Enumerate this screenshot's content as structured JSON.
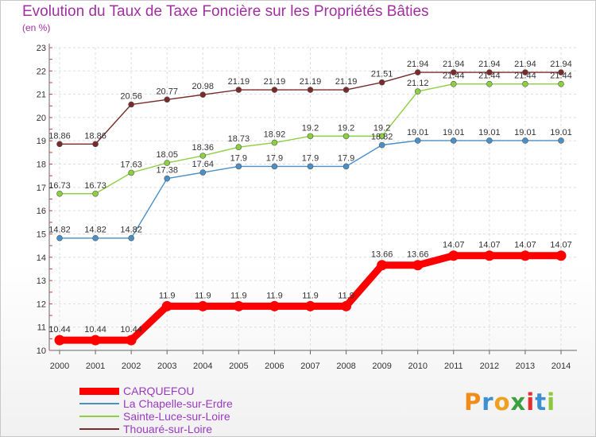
{
  "chart_data": {
    "type": "line",
    "title": "Evolution du Taux de Taxe Foncière sur les Propriétés Bâties",
    "unit_label": "(en %)",
    "x": [
      "2000",
      "2001",
      "2002",
      "2003",
      "2004",
      "2005",
      "2006",
      "2007",
      "2008",
      "2009",
      "2010",
      "2011",
      "2012",
      "2013",
      "2014"
    ],
    "ylim": [
      10,
      23
    ],
    "yticks": [
      "10",
      "11",
      "12",
      "13",
      "14",
      "15",
      "16",
      "17",
      "18",
      "19",
      "20",
      "21",
      "22",
      "23"
    ],
    "grid": true,
    "series": [
      {
        "name": "CARQUEFOU",
        "color": "#ff0000",
        "values": [
          10.44,
          10.44,
          10.44,
          11.9,
          11.9,
          11.9,
          11.9,
          11.9,
          11.9,
          13.66,
          13.66,
          14.07,
          14.07,
          14.07,
          14.07
        ],
        "labels": [
          "10.44",
          "10.44",
          "10.44",
          "11.9",
          "11.9",
          "11.9",
          "11.9",
          "11.9",
          "11.9",
          "13.66",
          "13.66",
          "14.07",
          "14.07",
          "14.07",
          "14.07"
        ]
      },
      {
        "name": "La Chapelle-sur-Erdre",
        "color": "#4a90c8",
        "values": [
          14.82,
          14.82,
          14.82,
          17.38,
          17.64,
          17.9,
          17.9,
          17.9,
          17.9,
          18.82,
          19.01,
          19.01,
          19.01,
          19.01,
          19.01
        ],
        "labels": [
          "14.82",
          "14.82",
          "14.82",
          "17.38",
          "17.64",
          "17.9",
          "17.9",
          "17.9",
          "17.9",
          "18.82",
          "19.01",
          "19.01",
          "19.01",
          "19.01",
          "19.01"
        ]
      },
      {
        "name": "Sainte-Luce-sur-Loire",
        "color": "#8cd040",
        "values": [
          16.73,
          16.73,
          17.63,
          18.05,
          18.36,
          18.73,
          18.92,
          19.2,
          19.2,
          19.2,
          21.12,
          21.44,
          21.44,
          21.44,
          21.44
        ],
        "labels": [
          "16.73",
          "16.73",
          "17.63",
          "18.05",
          "18.36",
          "18.73",
          "18.92",
          "19.2",
          "19.2",
          "19.2",
          "21.12",
          "21.44",
          "21.44",
          "21.44",
          "21.44"
        ]
      },
      {
        "name": "Thouaré-sur-Loire",
        "color": "#7a2a2a",
        "values": [
          18.86,
          18.86,
          20.56,
          20.77,
          20.98,
          21.19,
          21.19,
          21.19,
          21.19,
          21.51,
          21.94,
          21.94,
          21.94,
          21.94,
          21.94
        ],
        "labels": [
          "18.86",
          "18.86",
          "20.56",
          "20.77",
          "20.98",
          "21.19",
          "21.19",
          "21.19",
          "21.19",
          "21.51",
          "21.94",
          "21.94",
          "21.94",
          "21.94",
          "21.94"
        ]
      }
    ]
  },
  "brand": {
    "text": "Proxiti",
    "letter_colors": [
      "#f08c1a",
      "#3c8fd0",
      "#f0a020",
      "#3ca040",
      "#e03030",
      "#3c8fd0",
      "#8cc83c"
    ]
  }
}
